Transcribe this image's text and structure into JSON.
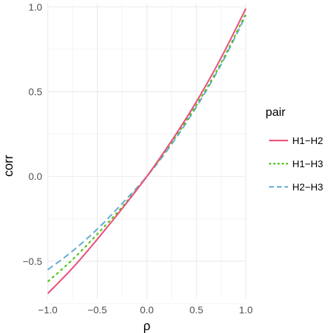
{
  "chart_data": {
    "type": "line",
    "title": "",
    "xlabel": "ρ",
    "ylabel": "corr",
    "xlim": [
      -1.0,
      1.0
    ],
    "ylim": [
      -0.72,
      1.02
    ],
    "x_ticks": [
      -1.0,
      -0.5,
      0.0,
      0.5,
      1.0
    ],
    "x_tick_labels": [
      "−1.0",
      "−0.5",
      "0.0",
      "0.5",
      "1.0"
    ],
    "y_ticks": [
      -0.5,
      0.0,
      0.5,
      1.0
    ],
    "y_tick_labels": [
      "−0.5",
      "0.0",
      "0.5",
      "1.0"
    ],
    "grid": true,
    "legend": {
      "title": "pair",
      "position": "right"
    },
    "x": [
      -1.0,
      -0.75,
      -0.5,
      -0.25,
      0.0,
      0.25,
      0.5,
      0.75,
      1.0
    ],
    "series": [
      {
        "name": "H1−H2",
        "color": "#E8547E",
        "dash": "solid",
        "values": [
          -0.69,
          -0.54,
          -0.37,
          -0.19,
          0.0,
          0.21,
          0.44,
          0.7,
          0.99
        ]
      },
      {
        "name": "H1−H3",
        "color": "#4EC212",
        "dash": "dotted",
        "values": [
          -0.62,
          -0.49,
          -0.34,
          -0.18,
          0.0,
          0.2,
          0.42,
          0.67,
          0.96
        ]
      },
      {
        "name": "H2−H3",
        "color": "#6BAED6",
        "dash": "dashed",
        "values": [
          -0.55,
          -0.44,
          -0.31,
          -0.16,
          0.0,
          0.19,
          0.41,
          0.66,
          0.95
        ]
      }
    ]
  }
}
